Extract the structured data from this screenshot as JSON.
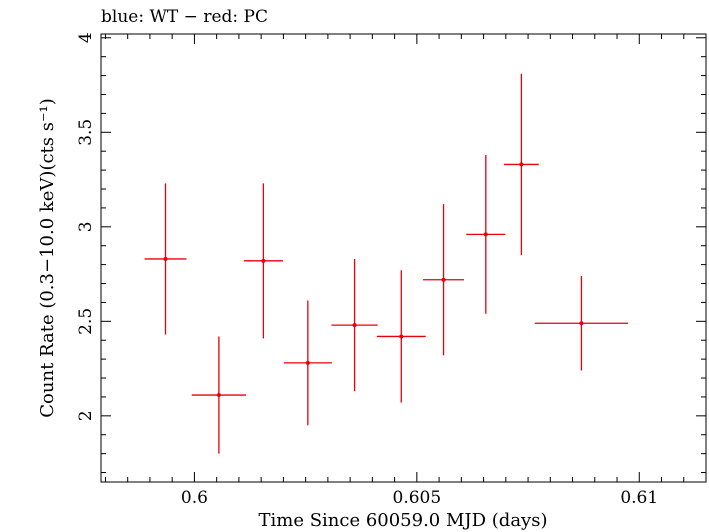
{
  "chart_data": {
    "type": "scatter",
    "title": "blue: WT − red: PC",
    "xlabel": "Time Since 60059.0 MJD (days)",
    "ylabel": "Count Rate (0.3−10.0 keV)(cts s⁻¹)",
    "xlim": [
      0.5979,
      0.6115
    ],
    "ylim": [
      1.65,
      4.02
    ],
    "x_ticks": [
      {
        "value": 0.6,
        "label": "0.6"
      },
      {
        "value": 0.605,
        "label": "0.605"
      },
      {
        "value": 0.61,
        "label": "0.61"
      }
    ],
    "y_ticks": [
      {
        "value": 2,
        "label": "2"
      },
      {
        "value": 2.5,
        "label": "2.5"
      },
      {
        "value": 3,
        "label": "3"
      },
      {
        "value": 3.5,
        "label": "3.5"
      },
      {
        "value": 4,
        "label": "4"
      }
    ],
    "grid": false,
    "series": [
      {
        "name": "PC",
        "color": "#e8000b",
        "points": [
          {
            "x": 0.59935,
            "xerr": 0.00047,
            "y": 2.83,
            "yerr": 0.4
          },
          {
            "x": 0.60055,
            "xerr": 0.00061,
            "y": 2.11,
            "yerr": 0.31
          },
          {
            "x": 0.60155,
            "xerr": 0.00044,
            "y": 2.82,
            "yerr": 0.41
          },
          {
            "x": 0.60255,
            "xerr": 0.00054,
            "y": 2.28,
            "yerr": 0.33
          },
          {
            "x": 0.6036,
            "xerr": 0.00052,
            "y": 2.48,
            "yerr": 0.35
          },
          {
            "x": 0.60465,
            "xerr": 0.00055,
            "y": 2.42,
            "yerr": 0.35
          },
          {
            "x": 0.6056,
            "xerr": 0.00046,
            "y": 2.72,
            "yerr": 0.4
          },
          {
            "x": 0.60655,
            "xerr": 0.00044,
            "y": 2.96,
            "yerr": 0.42
          },
          {
            "x": 0.60735,
            "xerr": 0.00039,
            "y": 3.33,
            "yerr": 0.48
          },
          {
            "x": 0.6087,
            "xerr": 0.00105,
            "y": 2.49,
            "yerr": 0.25
          }
        ]
      }
    ]
  }
}
